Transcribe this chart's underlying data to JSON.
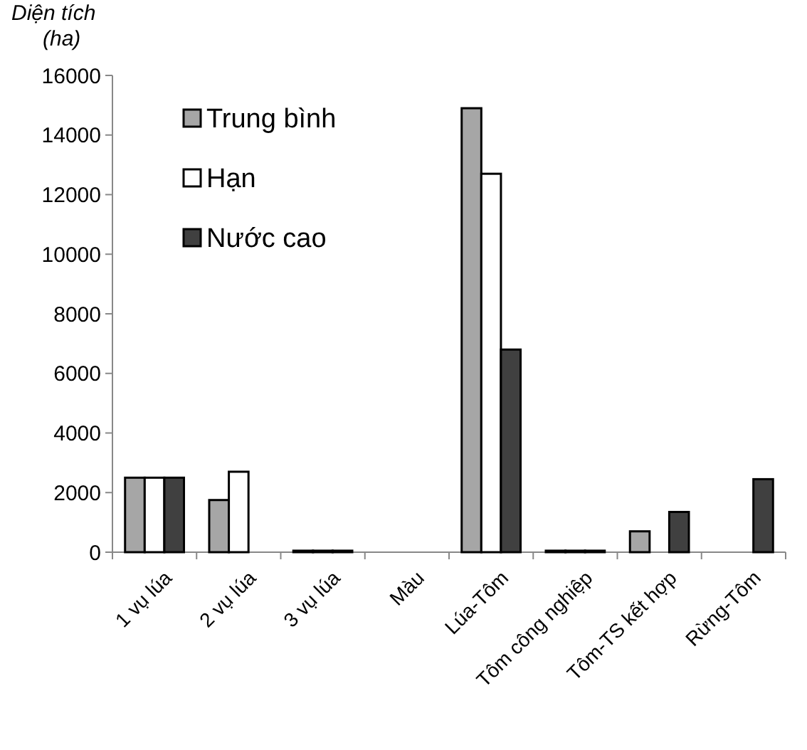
{
  "chart_data": {
    "type": "bar",
    "ylabel": "Diện tích\n(ha)",
    "categories": [
      "1 vụ lúa",
      "2 vụ lúa",
      "3 vụ lúa",
      "Màu",
      "Lúa-Tôm",
      "Tôm công nghiệp",
      "Tôm-TS kết hợp",
      "Rừng-Tôm"
    ],
    "series": [
      {
        "name": "Trung bình",
        "color": "#a6a6a6",
        "values": [
          2500,
          1750,
          50,
          0,
          14900,
          50,
          700,
          0
        ]
      },
      {
        "name": "Hạn",
        "color": "#ffffff",
        "values": [
          2500,
          2700,
          50,
          0,
          12700,
          50,
          0,
          0
        ]
      },
      {
        "name": "Nước cao",
        "color": "#404040",
        "values": [
          2500,
          0,
          50,
          0,
          6800,
          50,
          1350,
          2450
        ]
      }
    ],
    "ylim": [
      0,
      16000
    ],
    "yticks": [
      0,
      2000,
      4000,
      6000,
      8000,
      10000,
      12000,
      14000,
      16000
    ],
    "grid": false,
    "legend": "top left"
  }
}
